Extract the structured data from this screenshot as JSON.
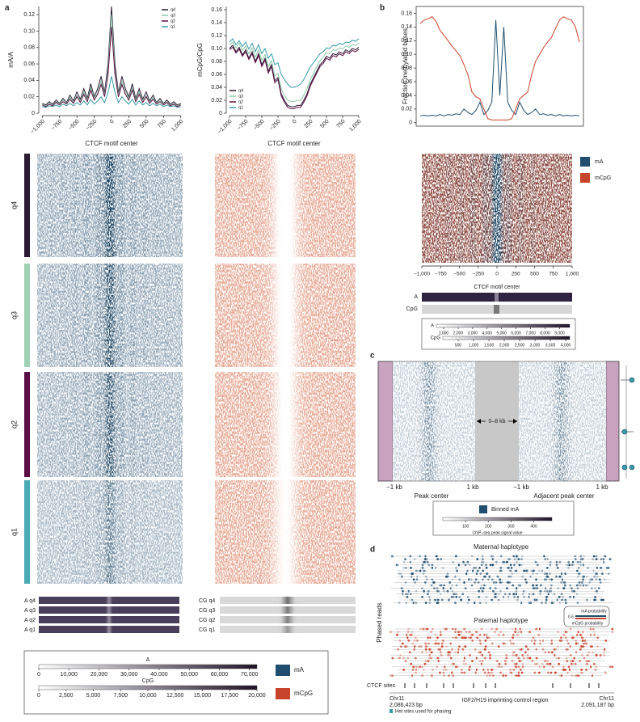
{
  "chart_data": [
    {
      "type": "line",
      "ylabel": "mA/A",
      "xlabel": "CTCF motif center",
      "legend": "upper right",
      "x": [
        -1000,
        -950,
        -900,
        -850,
        -800,
        -750,
        -700,
        -650,
        -600,
        -550,
        -500,
        -450,
        -400,
        -350,
        -300,
        -250,
        -200,
        -150,
        -100,
        -50,
        0,
        50,
        100,
        150,
        200,
        250,
        300,
        350,
        400,
        450,
        500,
        550,
        600,
        650,
        700,
        750,
        800,
        850,
        900,
        950,
        1000
      ],
      "series": [
        {
          "name": "q4",
          "color": "#2a1a33",
          "values": [
            0.012,
            0.01,
            0.014,
            0.011,
            0.016,
            0.012,
            0.018,
            0.013,
            0.022,
            0.015,
            0.026,
            0.017,
            0.03,
            0.018,
            0.036,
            0.02,
            0.03,
            0.045,
            0.025,
            0.06,
            0.13,
            0.06,
            0.025,
            0.045,
            0.03,
            0.02,
            0.036,
            0.018,
            0.03,
            0.017,
            0.026,
            0.015,
            0.022,
            0.013,
            0.018,
            0.012,
            0.016,
            0.011,
            0.014,
            0.01,
            0.012
          ]
        },
        {
          "name": "q3",
          "color": "#8fc9a8",
          "values": [
            0.011,
            0.009,
            0.012,
            0.01,
            0.014,
            0.011,
            0.016,
            0.012,
            0.019,
            0.013,
            0.022,
            0.015,
            0.026,
            0.016,
            0.031,
            0.018,
            0.026,
            0.039,
            0.022,
            0.052,
            0.12,
            0.052,
            0.022,
            0.039,
            0.026,
            0.018,
            0.031,
            0.016,
            0.026,
            0.015,
            0.022,
            0.013,
            0.019,
            0.012,
            0.016,
            0.011,
            0.014,
            0.01,
            0.012,
            0.009,
            0.011
          ]
        },
        {
          "name": "q2",
          "color": "#5b1045",
          "values": [
            0.01,
            0.008,
            0.011,
            0.009,
            0.013,
            0.01,
            0.014,
            0.011,
            0.017,
            0.012,
            0.02,
            0.013,
            0.023,
            0.014,
            0.028,
            0.016,
            0.023,
            0.035,
            0.02,
            0.047,
            0.105,
            0.047,
            0.02,
            0.035,
            0.023,
            0.016,
            0.028,
            0.014,
            0.023,
            0.013,
            0.02,
            0.012,
            0.017,
            0.011,
            0.014,
            0.01,
            0.013,
            0.009,
            0.011,
            0.008,
            0.01
          ]
        },
        {
          "name": "q1",
          "color": "#3a9aa8",
          "values": [
            0.008,
            0.007,
            0.009,
            0.008,
            0.01,
            0.008,
            0.011,
            0.009,
            0.012,
            0.009,
            0.013,
            0.01,
            0.015,
            0.01,
            0.017,
            0.011,
            0.015,
            0.02,
            0.013,
            0.025,
            0.045,
            0.025,
            0.013,
            0.02,
            0.015,
            0.011,
            0.017,
            0.01,
            0.015,
            0.01,
            0.013,
            0.009,
            0.012,
            0.009,
            0.011,
            0.008,
            0.01,
            0.008,
            0.009,
            0.007,
            0.008
          ]
        }
      ],
      "xlim": [
        -1050,
        1050
      ],
      "ylim": [
        0,
        0.13
      ],
      "xticks": [
        {
          "value": -1000,
          "label": "−1,000"
        },
        {
          "value": -750,
          "label": "−750"
        },
        {
          "value": -500,
          "label": "−500"
        },
        {
          "value": -250,
          "label": "−250"
        },
        0,
        250,
        500,
        750,
        {
          "value": 1000,
          "label": "1,000"
        }
      ],
      "yticks": [
        0,
        0.02,
        0.04,
        0.06,
        0.08,
        {
          "value": 0.1,
          "label": "0.10"
        },
        0.12
      ]
    },
    {
      "type": "line",
      "ylabel": "mCpG/CpG",
      "xlabel": "CTCF motif center",
      "legend": "lower left",
      "x": [
        -1000,
        -950,
        -900,
        -850,
        -800,
        -750,
        -700,
        -650,
        -600,
        -550,
        -500,
        -450,
        -400,
        -350,
        -300,
        -250,
        -200,
        -150,
        -100,
        -50,
        0,
        50,
        100,
        150,
        200,
        250,
        300,
        350,
        400,
        450,
        500,
        550,
        600,
        650,
        700,
        750,
        800,
        850,
        900,
        950,
        1000
      ],
      "series": [
        {
          "name": "q4",
          "color": "#2a1a33",
          "values": [
            0.1,
            0.105,
            0.095,
            0.102,
            0.09,
            0.098,
            0.085,
            0.095,
            0.08,
            0.092,
            0.075,
            0.085,
            0.065,
            0.075,
            0.05,
            0.055,
            0.03,
            0.02,
            0.012,
            0.01,
            0.01,
            0.012,
            0.012,
            0.02,
            0.03,
            0.045,
            0.055,
            0.065,
            0.075,
            0.08,
            0.088,
            0.085,
            0.092,
            0.09,
            0.095,
            0.092,
            0.098,
            0.095,
            0.1,
            0.098,
            0.102
          ]
        },
        {
          "name": "q3",
          "color": "#8fc9a8",
          "values": [
            0.106,
            0.11,
            0.101,
            0.108,
            0.097,
            0.104,
            0.092,
            0.101,
            0.087,
            0.098,
            0.082,
            0.091,
            0.072,
            0.081,
            0.058,
            0.062,
            0.038,
            0.028,
            0.02,
            0.018,
            0.018,
            0.02,
            0.02,
            0.028,
            0.038,
            0.052,
            0.062,
            0.072,
            0.081,
            0.087,
            0.094,
            0.092,
            0.098,
            0.097,
            0.101,
            0.099,
            0.104,
            0.102,
            0.106,
            0.105,
            0.108
          ]
        },
        {
          "name": "q2",
          "color": "#5b1045",
          "values": [
            0.098,
            0.102,
            0.093,
            0.099,
            0.088,
            0.095,
            0.083,
            0.092,
            0.078,
            0.089,
            0.072,
            0.082,
            0.062,
            0.072,
            0.047,
            0.052,
            0.027,
            0.017,
            0.009,
            0.007,
            0.007,
            0.009,
            0.009,
            0.017,
            0.027,
            0.042,
            0.052,
            0.062,
            0.072,
            0.077,
            0.085,
            0.082,
            0.089,
            0.087,
            0.092,
            0.089,
            0.095,
            0.092,
            0.097,
            0.095,
            0.099
          ]
        },
        {
          "name": "q1",
          "color": "#3a9aa8",
          "values": [
            0.11,
            0.115,
            0.106,
            0.112,
            0.103,
            0.11,
            0.099,
            0.108,
            0.095,
            0.106,
            0.092,
            0.1,
            0.085,
            0.092,
            0.075,
            0.078,
            0.06,
            0.052,
            0.045,
            0.04,
            0.04,
            0.042,
            0.045,
            0.052,
            0.062,
            0.072,
            0.078,
            0.085,
            0.092,
            0.095,
            0.101,
            0.1,
            0.105,
            0.104,
            0.108,
            0.106,
            0.11,
            0.109,
            0.113,
            0.111,
            0.115
          ]
        }
      ],
      "xlim": [
        -1050,
        1050
      ],
      "ylim": [
        0,
        0.165
      ],
      "xticks": [
        {
          "value": -1000,
          "label": "−1,000"
        },
        {
          "value": -750,
          "label": "−750"
        },
        {
          "value": -500,
          "label": "−500"
        },
        {
          "value": -250,
          "label": "−250"
        },
        0,
        250,
        500,
        750,
        {
          "value": 1000,
          "label": "1,000"
        }
      ],
      "yticks": [
        0,
        0.02,
        0.04,
        0.06,
        0.08,
        {
          "value": 0.1,
          "label": "0.10"
        },
        0.12,
        0.14,
        0.16
      ]
    },
    {
      "type": "line",
      "ylabel": "Fraction methylated bases",
      "x": [
        -1000,
        -950,
        -900,
        -850,
        -800,
        -750,
        -700,
        -650,
        -600,
        -550,
        -500,
        -450,
        -400,
        -350,
        -300,
        -250,
        -200,
        -150,
        -100,
        -50,
        0,
        50,
        100,
        150,
        200,
        250,
        300,
        350,
        400,
        450,
        500,
        550,
        600,
        650,
        700,
        750,
        800,
        850,
        900,
        950,
        1000
      ],
      "series": [
        {
          "name": "mA",
          "color": "#1f4e6e",
          "values": [
            0.01,
            0.011,
            0.01,
            0.011,
            0.01,
            0.012,
            0.01,
            0.012,
            0.011,
            0.013,
            0.012,
            0.02,
            0.015,
            0.012,
            0.018,
            0.03,
            0.012,
            0.018,
            0.03,
            0.15,
            0.04,
            0.14,
            0.03,
            0.018,
            0.012,
            0.03,
            0.018,
            0.012,
            0.015,
            0.02,
            0.012,
            0.013,
            0.011,
            0.012,
            0.01,
            0.012,
            0.01,
            0.011,
            0.01,
            0.011,
            0.01
          ]
        },
        {
          "name": "mCpG",
          "color": "#c8432b",
          "values": [
            0.145,
            0.15,
            0.152,
            0.155,
            0.148,
            0.135,
            0.128,
            0.12,
            0.112,
            0.105,
            0.098,
            0.085,
            0.07,
            0.045,
            0.038,
            0.035,
            0.02,
            0.006,
            0.004,
            0.004,
            0.004,
            0.004,
            0.004,
            0.006,
            0.02,
            0.035,
            0.04,
            0.045,
            0.07,
            0.09,
            0.1,
            0.11,
            0.118,
            0.125,
            0.138,
            0.15,
            0.155,
            0.152,
            0.15,
            0.14,
            0.118
          ]
        }
      ],
      "xlim": [
        -1050,
        1050
      ],
      "ylim": [
        -0.005,
        0.17
      ],
      "yticks": [
        0,
        0.02,
        0.04,
        0.06,
        0.08,
        {
          "value": 0.1,
          "label": "0.10"
        },
        0.12,
        0.14,
        0.16
      ]
    },
    {
      "type": "colorbar",
      "title": "A",
      "xlim": [
        0,
        72500
      ],
      "xticks": [
        0,
        {
          "value": 10000,
          "label": "10,000"
        },
        {
          "value": 20000,
          "label": "20,000"
        },
        {
          "value": 30000,
          "label": "30,000"
        },
        {
          "value": 40000,
          "label": "40,000"
        },
        {
          "value": 50000,
          "label": "50,000"
        },
        {
          "value": 60000,
          "label": "60,000"
        },
        {
          "value": 70000,
          "label": "70,000"
        }
      ]
    },
    {
      "type": "colorbar",
      "title": "CpG",
      "xlim": [
        0,
        20000
      ],
      "xticks": [
        0,
        {
          "value": 2500,
          "label": "2,500"
        },
        {
          "value": 5000,
          "label": "5,000"
        },
        {
          "value": 7500,
          "label": "7,500"
        },
        {
          "value": 10000,
          "label": "10,000"
        },
        {
          "value": 12500,
          "label": "12,500"
        },
        {
          "value": 15000,
          "label": "15,000"
        },
        {
          "value": 17500,
          "label": "17,500"
        },
        {
          "value": 20000,
          "label": "20,000"
        }
      ]
    },
    {
      "type": "colorbar",
      "title": "A",
      "xlim": [
        500,
        9700
      ],
      "xticks": [
        {
          "value": 1000,
          "label": "1,000"
        },
        {
          "value": 2000,
          "label": "2,000"
        },
        {
          "value": 3000,
          "label": "3,000"
        },
        {
          "value": 4000,
          "label": "4,000"
        },
        {
          "value": 5000,
          "label": "5,000"
        },
        {
          "value": 6000,
          "label": "6,000"
        },
        {
          "value": 7000,
          "label": "7,000"
        },
        {
          "value": 8000,
          "label": "8,000"
        },
        {
          "value": 9000,
          "label": "9,000"
        }
      ]
    },
    {
      "type": "colorbar",
      "title": "CpG",
      "xlim": [
        0,
        4130
      ],
      "xticks": [
        500,
        {
          "value": 1000,
          "label": "1,000"
        },
        {
          "value": 1500,
          "label": "1,500"
        },
        {
          "value": 2000,
          "label": "2,000"
        },
        {
          "value": 2500,
          "label": "2,500"
        },
        {
          "value": 3000,
          "label": "3,000"
        },
        {
          "value": 3500,
          "label": "3,500"
        },
        {
          "value": 4000,
          "label": "4,000"
        }
      ]
    },
    {
      "type": "colorbar",
      "xlabel": "ChIP–seq peak signal value",
      "xlim": [
        0,
        480
      ],
      "xticks": [
        100,
        200,
        300,
        400
      ]
    }
  ],
  "panel_a": {
    "label": "a",
    "rows": [
      "q4",
      "q3",
      "q2",
      "q1"
    ],
    "a_bars": [
      "A q4",
      "A q3",
      "A q2",
      "A q1"
    ],
    "cg_bars": [
      "CG q4",
      "CG q3",
      "CG q2",
      "CG q1"
    ],
    "legend": [
      "mA",
      "mCpG"
    ]
  },
  "panel_b": {
    "label": "b",
    "legend": [
      "mA",
      "mCpG"
    ],
    "heatmap_xlim": [
      -1000,
      1000
    ],
    "heatmap_xticks": [
      {
        "value": -1000,
        "label": "−1,000"
      },
      {
        "value": -750,
        "label": "−750"
      },
      {
        "value": -500,
        "label": "−500"
      },
      {
        "value": -250,
        "label": "−250"
      },
      0,
      250,
      500,
      750,
      {
        "value": 1000,
        "label": "1,000"
      }
    ],
    "heatmap_xlabel": "CTCF motif center",
    "bar_labels": [
      "A",
      "CpG"
    ]
  },
  "panel_c": {
    "label": "c",
    "span": "0–8 kb",
    "tick_labels": [
      "−1 kb",
      "1 kb",
      "−1 kb",
      "1 kb"
    ],
    "xlabels": [
      "Peak center",
      "Adjacent peak center"
    ],
    "legend": "Binned mA"
  },
  "panel_d": {
    "label": "d",
    "maternal": "Maternal haplotype",
    "paternal": "Paternal haplotype",
    "ylabel": "Phased reads",
    "legend_top": "mA probability",
    "legend_value": "0.6",
    "legend_bottom": "mCpG probability",
    "ctcf": "CTCF sites",
    "left_chrom": "Chr11",
    "left_pos": "2,086,423 bp",
    "region": "IGF2/H19 imprinting control region",
    "right_chrom": "Chr11",
    "right_pos": "2,091,187 bp",
    "het": "Het sites used for phasing"
  }
}
